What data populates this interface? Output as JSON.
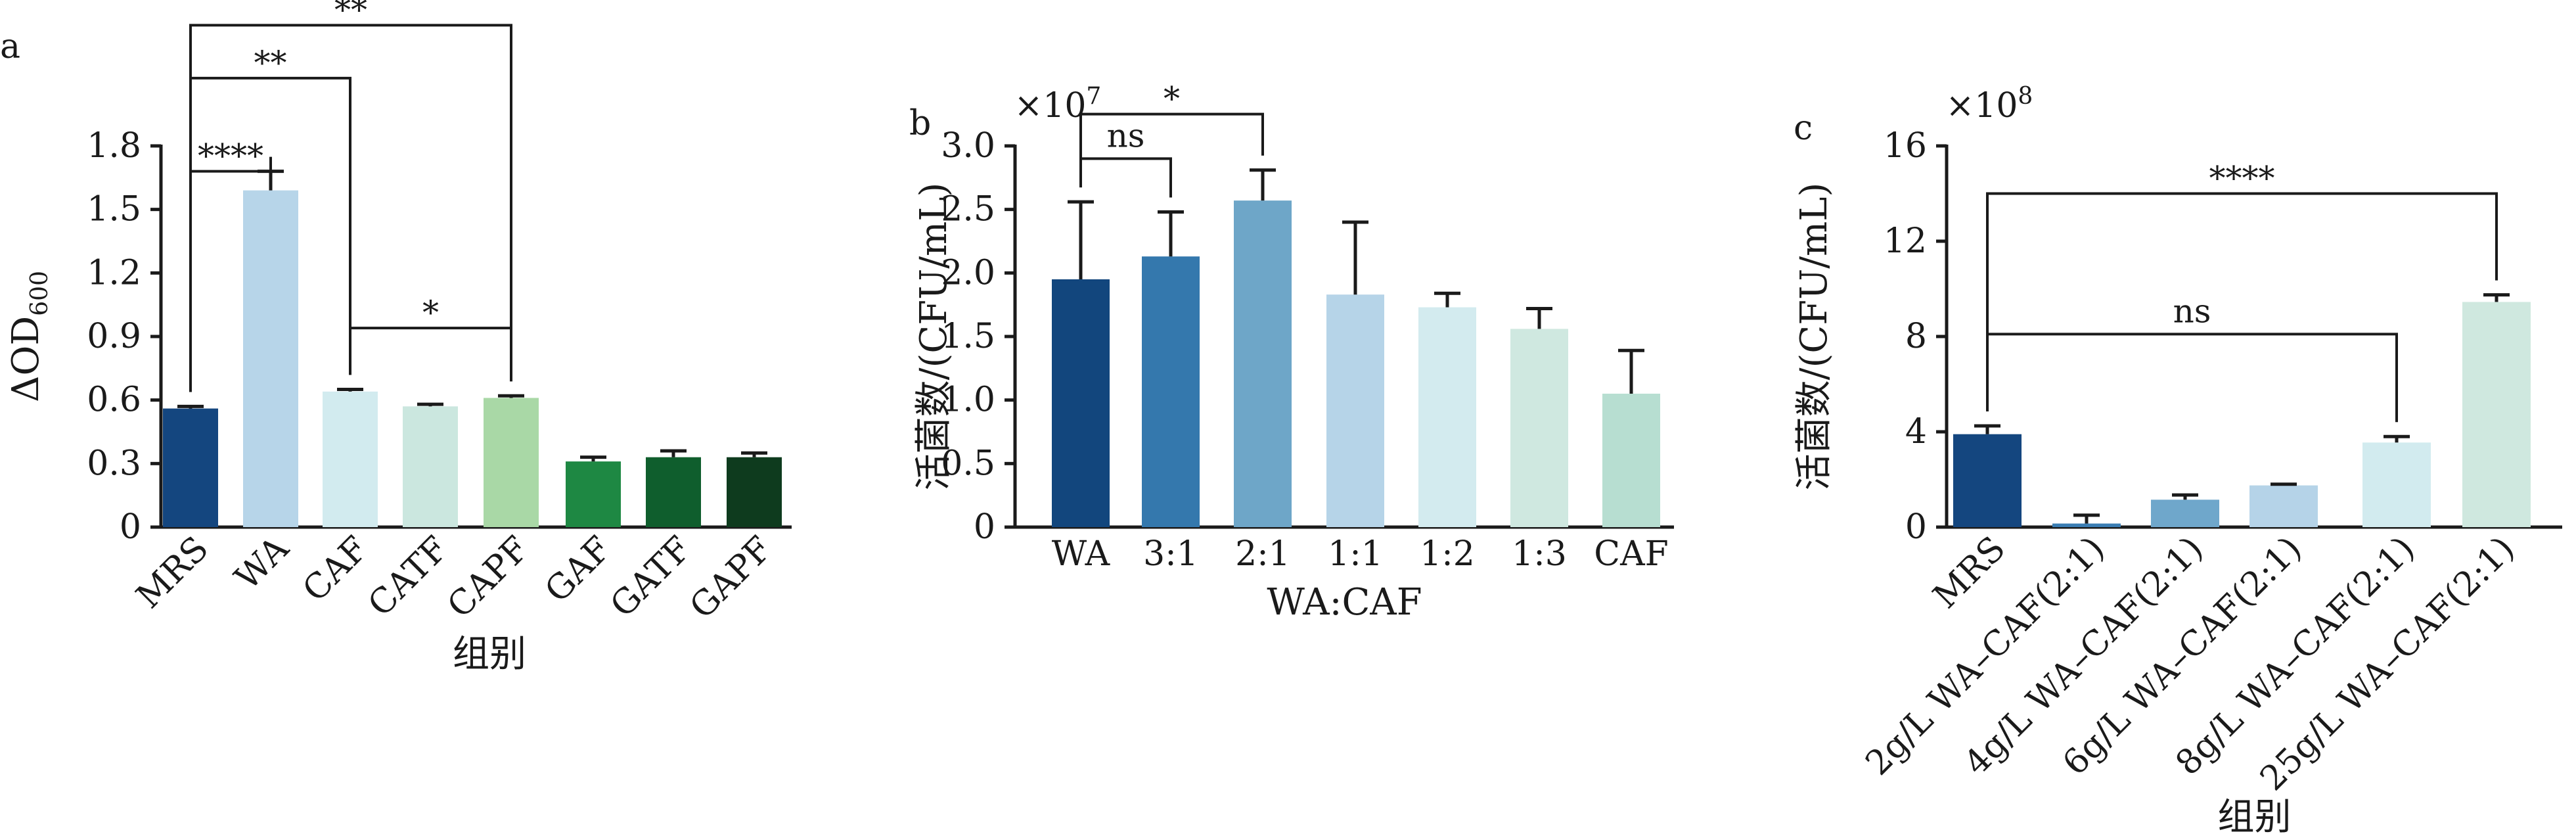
{
  "chart_data": [
    {
      "type": "bar",
      "panel": "a",
      "ylabel": "ΔOD",
      "ylabel_sub": "600",
      "xlabel": "组别",
      "ylim": [
        0,
        1.8
      ],
      "yticks": [
        0,
        0.3,
        0.6,
        0.9,
        1.2,
        1.5,
        1.8
      ],
      "ytick_labels": [
        "0",
        "0.3",
        "0.6",
        "0.9",
        "1.2",
        "1.5",
        "1.8"
      ],
      "exponent": "",
      "rotate_labels": true,
      "categories": [
        "MRS",
        "WA",
        "CAF",
        "CATF",
        "CAPF",
        "GAF",
        "GATF",
        "GAPF"
      ],
      "values": [
        0.56,
        1.59,
        0.64,
        0.57,
        0.61,
        0.31,
        0.33,
        0.33
      ],
      "errors": [
        0.01,
        0.09,
        0.01,
        0.01,
        0.01,
        0.02,
        0.03,
        0.02
      ],
      "colors": [
        "#14467f",
        "#b7d5e9",
        "#d2ebef",
        "#cbe7df",
        "#a9d8a6",
        "#1e8843",
        "#0f5e2d",
        "#0e3b1e"
      ],
      "significance": [
        {
          "i": 0,
          "j": 1,
          "level": 1.68,
          "label": "****"
        },
        {
          "i": 0,
          "j": 2,
          "level": 2.12,
          "label": "**"
        },
        {
          "i": 0,
          "j": 4,
          "level": 2.37,
          "label": "**"
        },
        {
          "i": 2,
          "j": 4,
          "level": 0.94,
          "label": "*"
        }
      ]
    },
    {
      "type": "bar",
      "panel": "b",
      "ylabel": "活菌数/(CFU/mL)",
      "xlabel": "WA:CAF",
      "ylim": [
        0,
        3.0
      ],
      "yticks": [
        0,
        0.5,
        1.0,
        1.5,
        2.0,
        2.5,
        3.0
      ],
      "ytick_labels": [
        "0",
        "0.5",
        "1.0",
        "1.5",
        "2.0",
        "2.5",
        "3.0"
      ],
      "exponent": "×10",
      "exponent_power": "7",
      "rotate_labels": false,
      "categories": [
        "WA",
        "3:1",
        "2:1",
        "1:1",
        "1:2",
        "1:3",
        "CAF"
      ],
      "values": [
        1.95,
        2.13,
        2.57,
        1.83,
        1.73,
        1.56,
        1.05
      ],
      "errors": [
        0.61,
        0.35,
        0.24,
        0.57,
        0.11,
        0.16,
        0.34
      ],
      "colors": [
        "#12467d",
        "#3478ad",
        "#6ea6c8",
        "#b6d4e8",
        "#d3ebef",
        "#cfe8e0",
        "#b7ded1"
      ],
      "significance": [
        {
          "i": 0,
          "j": 1,
          "level": 2.9,
          "label": "ns"
        },
        {
          "i": 0,
          "j": 2,
          "level": 3.25,
          "label": "*"
        }
      ]
    },
    {
      "type": "bar",
      "panel": "c",
      "ylabel": "活菌数/(CFU/mL)",
      "xlabel": "组别",
      "ylim": [
        0,
        16
      ],
      "yticks": [
        0,
        4,
        8,
        12,
        16
      ],
      "ytick_labels": [
        "0",
        "4",
        "8",
        "12",
        "16"
      ],
      "exponent": "×10",
      "exponent_power": "8",
      "rotate_labels": true,
      "categories": [
        "MRS",
        "2g/L WA–CAF(2:1)",
        "4g/L WA–CAF(2:1)",
        "6g/L WA–CAF(2:1)",
        "8g/L WA–CAF(2:1)",
        "25g/L WA–CAF(2:1)"
      ],
      "values": [
        3.9,
        0.15,
        1.15,
        1.75,
        3.55,
        9.45
      ],
      "errors": [
        0.35,
        0.35,
        0.2,
        0.05,
        0.25,
        0.3
      ],
      "colors": [
        "#14467f",
        "#3a7db3",
        "#6fa7cb",
        "#b5d3e8",
        "#d2ebef",
        "#cfe8df"
      ],
      "significance": [
        {
          "i": 0,
          "j": 4,
          "level": 8.1,
          "label": "ns"
        },
        {
          "i": 0,
          "j": 5,
          "level": 14.0,
          "label": "****"
        }
      ]
    }
  ]
}
